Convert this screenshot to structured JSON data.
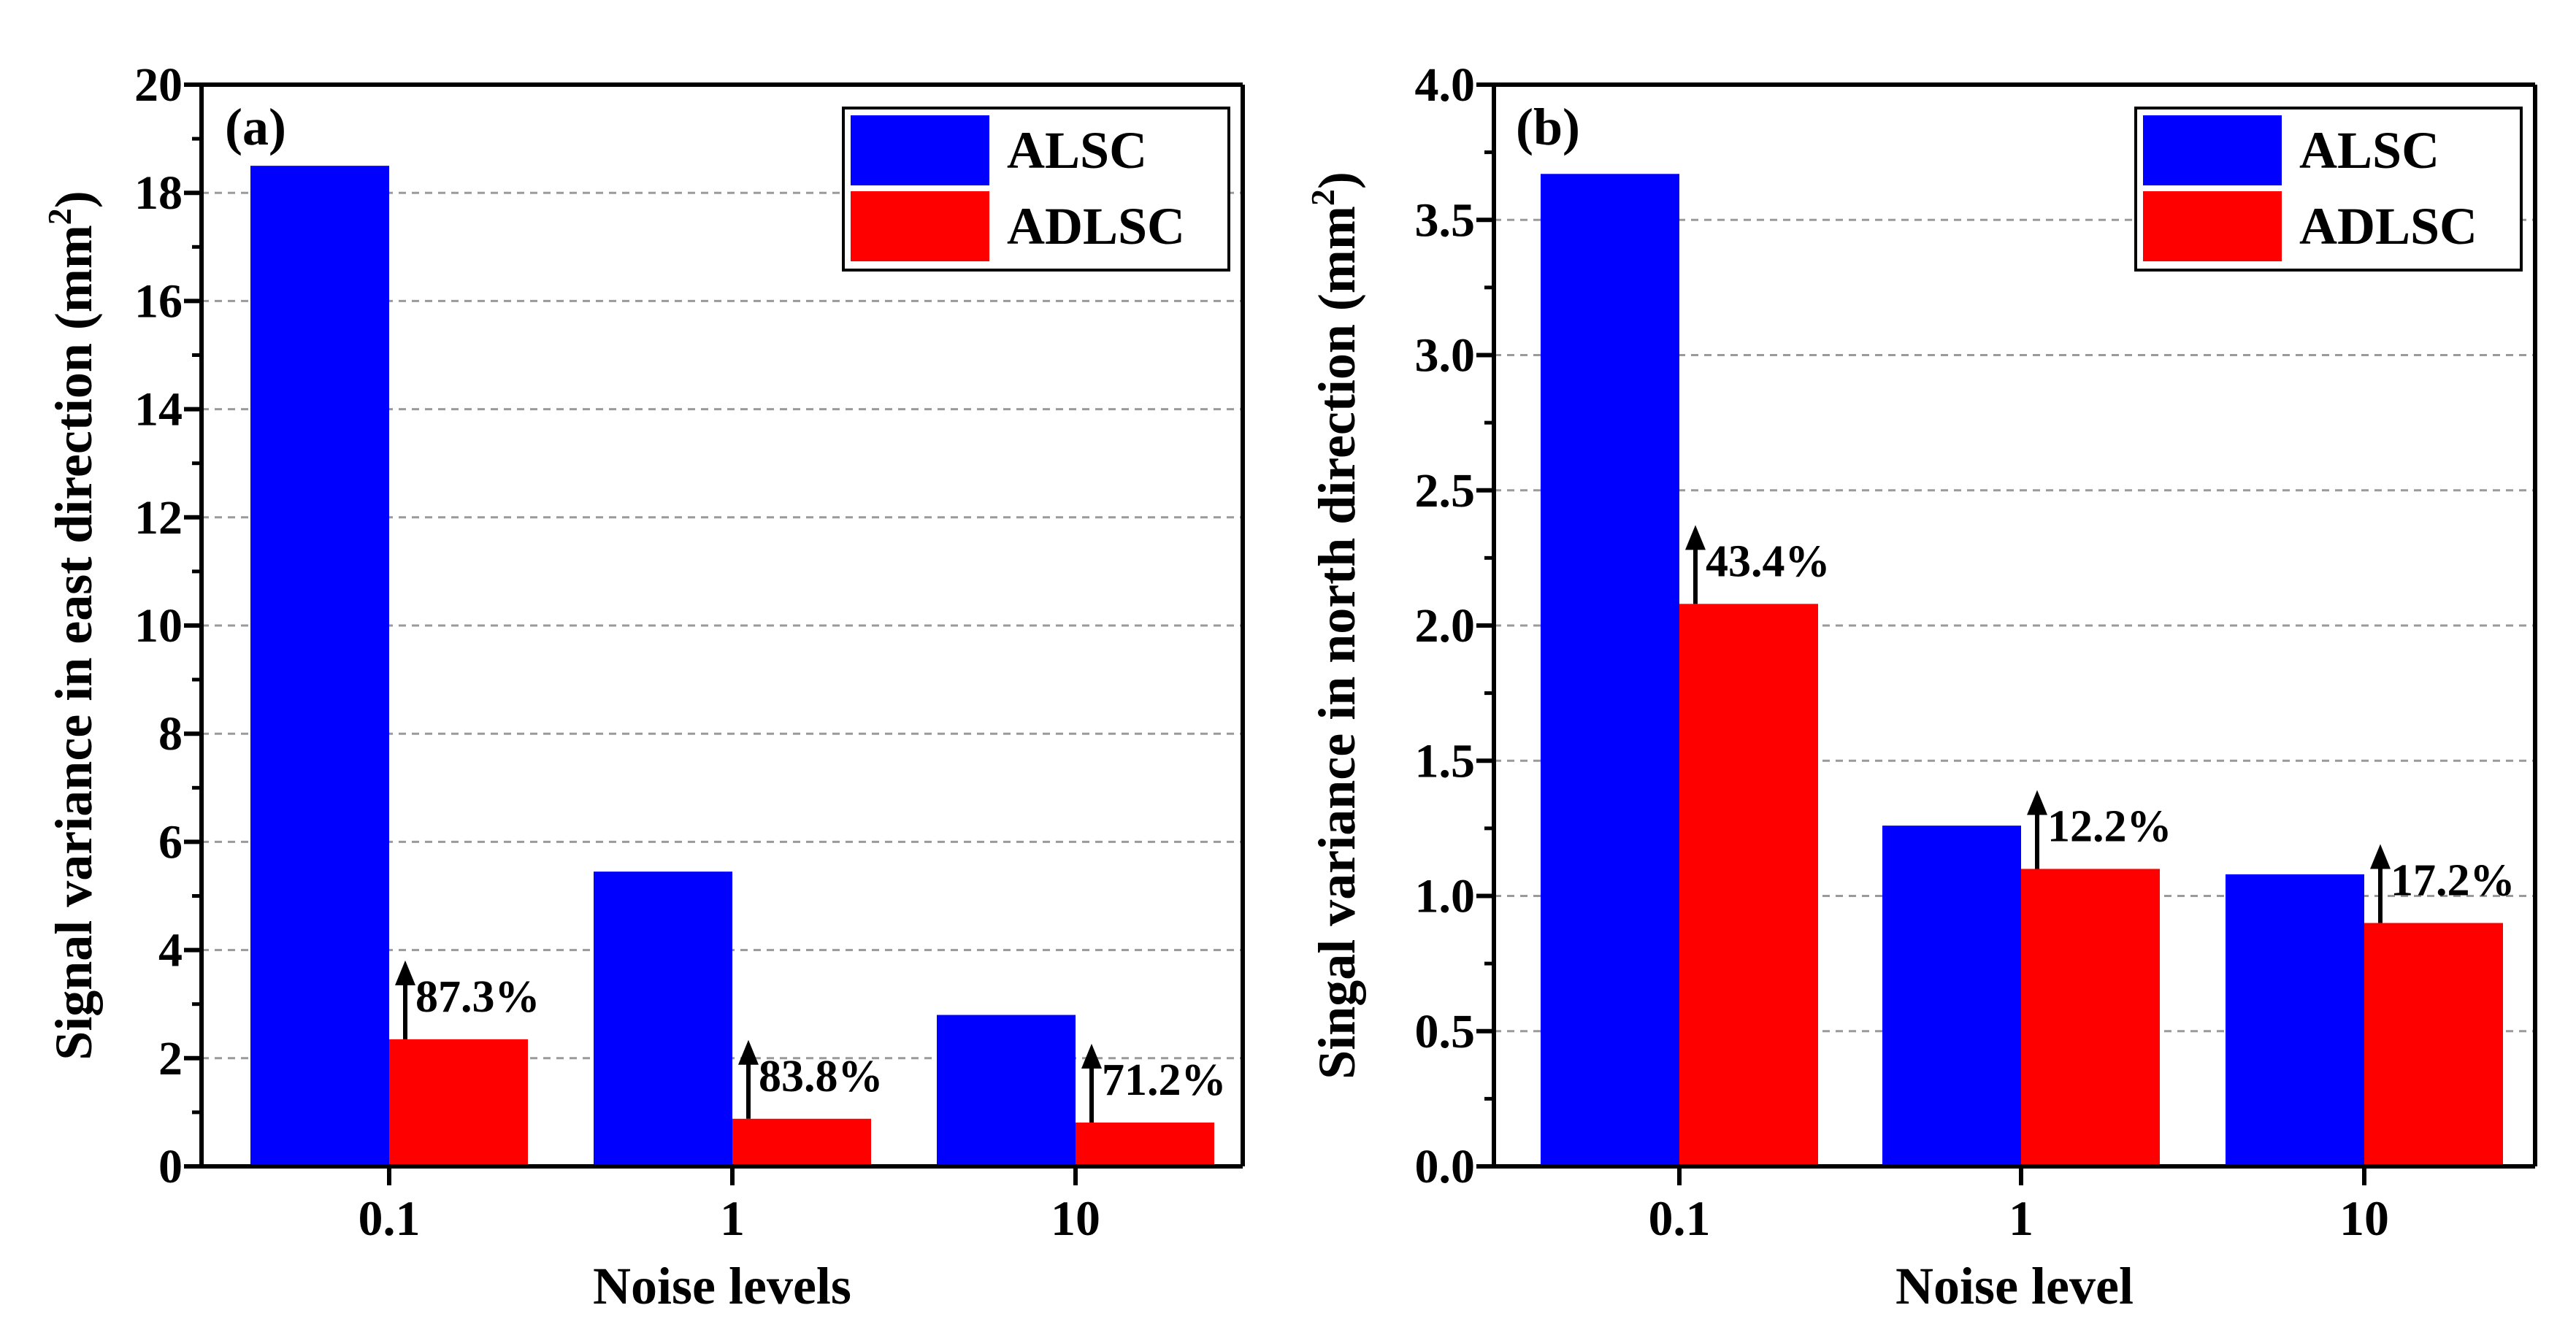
{
  "chart_data": [
    {
      "type": "bar",
      "panel_label": "(a)",
      "categories": [
        "0.1",
        "1",
        "10"
      ],
      "series": [
        {
          "name": "ALSC",
          "color": "#0000FF",
          "values": [
            18.5,
            5.45,
            2.8
          ]
        },
        {
          "name": "ADLSC",
          "color": "#FF0000",
          "values": [
            2.35,
            0.88,
            0.81
          ]
        }
      ],
      "annotations": [
        "87.3%",
        "83.8%",
        "71.2%"
      ],
      "xlabel": "Noise levels",
      "ylabel_main": "Signal variance in east direction (mm",
      "ylabel_sup": "2",
      "ylabel_end": ")",
      "ylim": [
        0,
        20
      ],
      "yticks": [
        0,
        2,
        4,
        6,
        8,
        10,
        12,
        14,
        16,
        18,
        20
      ],
      "ytick_labels": [
        "0",
        "2",
        "4",
        "6",
        "8",
        "10",
        "12",
        "14",
        "16",
        "18",
        "20"
      ],
      "grid": "horizontal dashed",
      "legend_position": "top-right"
    },
    {
      "type": "bar",
      "panel_label": "(b)",
      "categories": [
        "0.1",
        "1",
        "10"
      ],
      "series": [
        {
          "name": "ALSC",
          "color": "#0000FF",
          "values": [
            3.67,
            1.26,
            1.08
          ]
        },
        {
          "name": "ADLSC",
          "color": "#FF0000",
          "values": [
            2.08,
            1.1,
            0.9
          ]
        }
      ],
      "annotations": [
        "43.4%",
        "12.2%",
        "17.2%"
      ],
      "xlabel": "Noise level",
      "ylabel_main": "Singal variance in north direction (mm",
      "ylabel_sup": "2",
      "ylabel_end": ")",
      "ylim": [
        0,
        4
      ],
      "yticks": [
        0,
        0.5,
        1,
        1.5,
        2,
        2.5,
        3,
        3.5,
        4
      ],
      "ytick_labels": [
        "0.0",
        "0.5",
        "1.0",
        "1.5",
        "2.0",
        "2.5",
        "3.0",
        "3.5",
        "4.0"
      ],
      "grid": "horizontal dashed",
      "legend_position": "top-right"
    }
  ]
}
